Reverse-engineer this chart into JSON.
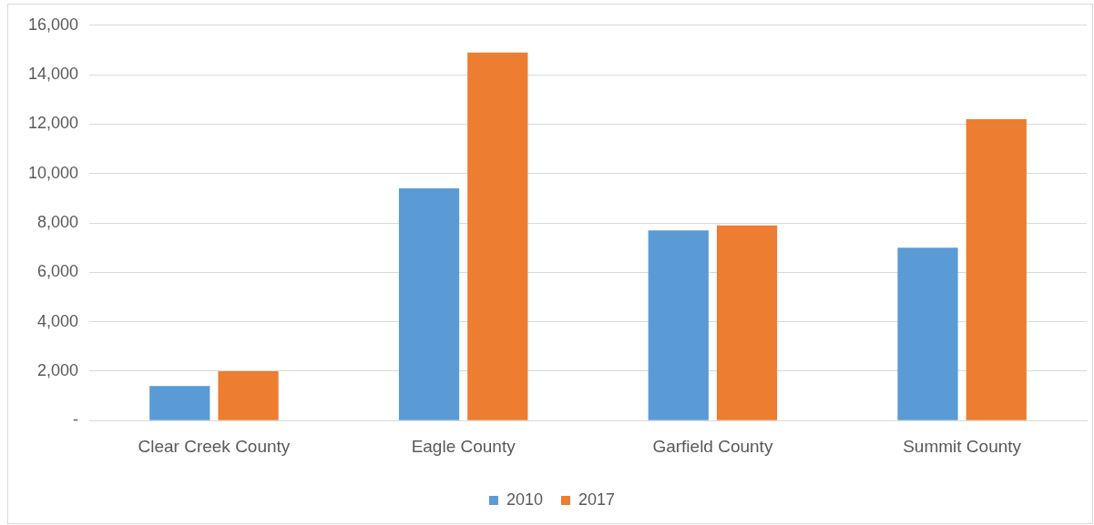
{
  "chart_data": {
    "type": "bar",
    "categories": [
      "Clear Creek County",
      "Eagle County",
      "Garfield County",
      "Summit County"
    ],
    "series": [
      {
        "name": "2010",
        "color": "#5b9bd5",
        "values": [
          1400,
          9400,
          7700,
          7000
        ]
      },
      {
        "name": "2017",
        "color": "#ed7d31",
        "values": [
          2000,
          14900,
          7900,
          12200
        ]
      }
    ],
    "ylim": [
      0,
      16000
    ],
    "yticks": [
      {
        "value": 0,
        "label": "-"
      },
      {
        "value": 2000,
        "label": "2,000"
      },
      {
        "value": 4000,
        "label": "4,000"
      },
      {
        "value": 6000,
        "label": "6,000"
      },
      {
        "value": 8000,
        "label": "8,000"
      },
      {
        "value": 10000,
        "label": "10,000"
      },
      {
        "value": 12000,
        "label": "12,000"
      },
      {
        "value": 14000,
        "label": "14,000"
      },
      {
        "value": 16000,
        "label": "16,000"
      }
    ],
    "grid": "y",
    "legend": "bottom"
  }
}
